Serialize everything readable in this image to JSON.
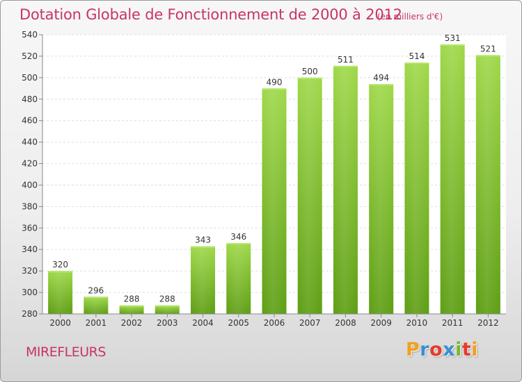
{
  "title": "Dotation Globale de Fonctionnement de 2000 à 2012",
  "subtitle": "(en milliers d'€)",
  "commune": "MIREFLEURS",
  "logo": {
    "letters": [
      "P",
      "r",
      "o",
      "x",
      "i",
      "t",
      "i"
    ],
    "colors": [
      "#f0a020",
      "#3a8fd0",
      "#e63a2a",
      "#3a8fd0",
      "#7ab82a",
      "#e63a2a",
      "#f0a020"
    ]
  },
  "chart_data": {
    "type": "bar",
    "title": "Dotation Globale de Fonctionnement de 2000 à 2012",
    "subtitle": "(en milliers d'€)",
    "categories": [
      "2000",
      "2001",
      "2002",
      "2003",
      "2004",
      "2005",
      "2006",
      "2007",
      "2008",
      "2009",
      "2010",
      "2011",
      "2012"
    ],
    "values": [
      320,
      296,
      288,
      288,
      343,
      346,
      490,
      500,
      511,
      494,
      514,
      531,
      521
    ],
    "ylim": [
      280,
      540
    ],
    "yticks": [
      280,
      300,
      320,
      340,
      360,
      380,
      400,
      420,
      440,
      460,
      480,
      500,
      520,
      540
    ],
    "grid": true,
    "bar_color": "#7cc02e"
  }
}
